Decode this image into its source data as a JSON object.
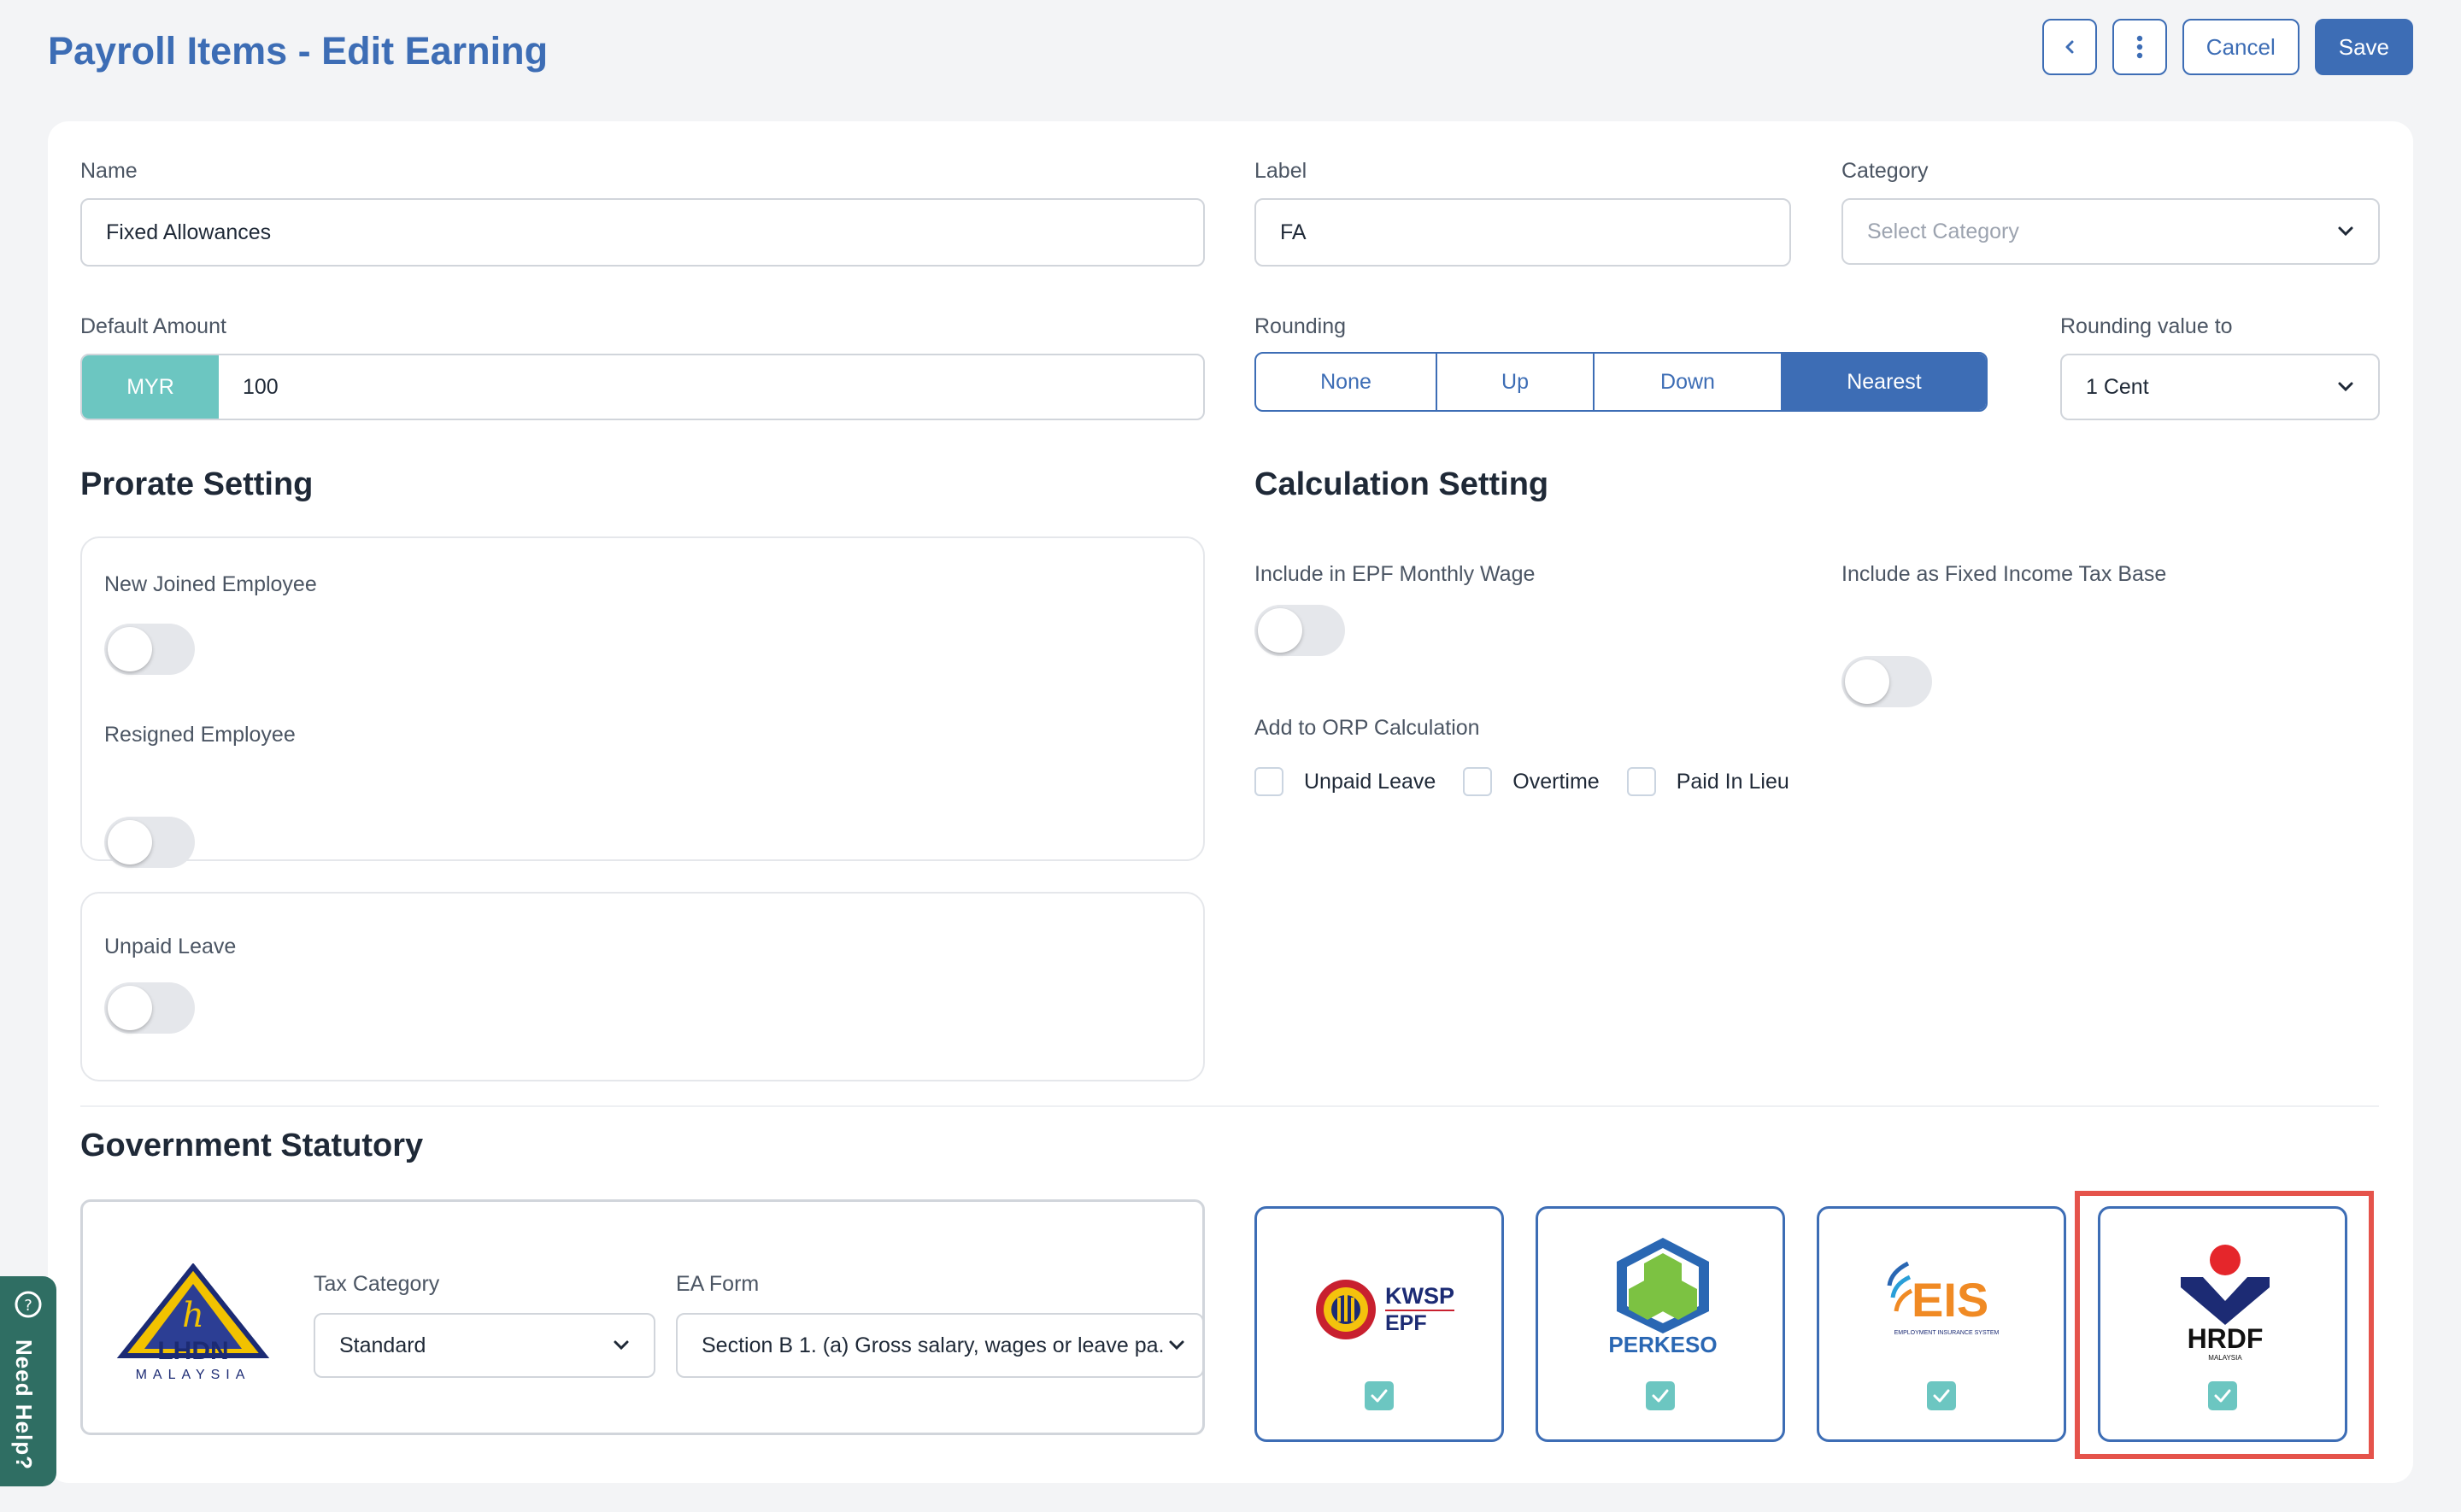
{
  "header": {
    "title": "Payroll Items - Edit Earning",
    "cancel_label": "Cancel",
    "save_label": "Save"
  },
  "form": {
    "name": {
      "label": "Name",
      "value": "Fixed Allowances"
    },
    "label_field": {
      "label": "Label",
      "value": "FA"
    },
    "category": {
      "label": "Category",
      "placeholder": "Select Category"
    },
    "default_amount": {
      "label": "Default Amount",
      "currency": "MYR",
      "value": "100"
    },
    "rounding": {
      "label": "Rounding",
      "options": [
        "None",
        "Up",
        "Down",
        "Nearest"
      ],
      "selected": "Nearest"
    },
    "rounding_value": {
      "label": "Rounding value to",
      "value": "1 Cent"
    }
  },
  "prorate": {
    "title": "Prorate Setting",
    "new_joined": {
      "label": "New Joined Employee",
      "on": false
    },
    "resigned": {
      "label": "Resigned Employee",
      "on": false
    },
    "unpaid_leave": {
      "label": "Unpaid Leave",
      "on": false
    }
  },
  "calculation": {
    "title": "Calculation Setting",
    "epf": {
      "label": "Include in EPF Monthly Wage",
      "on": false
    },
    "tax_base": {
      "label": "Include as Fixed Income Tax Base",
      "on": false
    },
    "orp": {
      "label": "Add to ORP Calculation",
      "options": [
        {
          "label": "Unpaid Leave",
          "checked": false
        },
        {
          "label": "Overtime",
          "checked": false
        },
        {
          "label": "Paid In Lieu",
          "checked": false
        }
      ]
    }
  },
  "government": {
    "title": "Government Statutory",
    "lhdn": {
      "logo_text": "LHDN",
      "logo_sub": "MALAYSIA"
    },
    "tax_category": {
      "label": "Tax Category",
      "value": "Standard"
    },
    "ea_form": {
      "label": "EA Form",
      "value": "Section B 1. (a) Gross salary, wages or leave pa."
    },
    "schemes": [
      {
        "name": "KWSP EPF",
        "line1": "KWSP",
        "line2": "EPF",
        "checked": true
      },
      {
        "name": "PERKESO",
        "line1": "PERKESO",
        "checked": true
      },
      {
        "name": "EIS",
        "line1": "EIS",
        "line2": "EMPLOYMENT INSURANCE SYSTEM",
        "checked": true
      },
      {
        "name": "HRDF",
        "line1": "HRDF",
        "line2": "MALAYSIA",
        "checked": true,
        "highlighted": true
      }
    ]
  },
  "help": {
    "label": "Need Help?"
  },
  "colors": {
    "accent": "#3d6db5",
    "teal": "#6cc6c1",
    "highlight": "#e5534b"
  }
}
